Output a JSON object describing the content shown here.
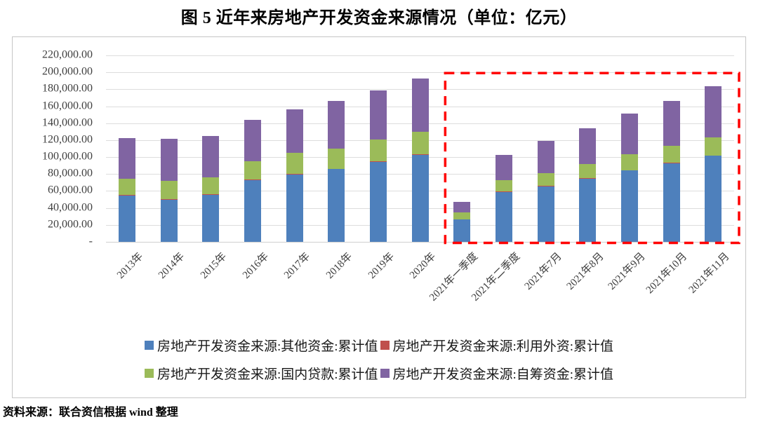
{
  "title": "图 5  近年来房地产开发资金来源情况（单位：亿元）",
  "source": "资料来源：联合资信根据 wind 整理",
  "chart_data": {
    "type": "bar",
    "stacked": true,
    "unit": "亿元",
    "grid": true,
    "legend_position": "bottom",
    "ylim": [
      0,
      220000
    ],
    "ytick_step": 20000,
    "ytick_labels": [
      "-",
      "20,000.00",
      "40,000.00",
      "60,000.00",
      "80,000.00",
      "100,000.00",
      "120,000.00",
      "140,000.00",
      "160,000.00",
      "180,000.00",
      "200,000.00",
      "220,000.00"
    ],
    "categories": [
      "2013年",
      "2014年",
      "2015年",
      "2016年",
      "2017年",
      "2018年",
      "2019年",
      "2020年",
      "2021年一季度",
      "2021年二季度",
      "2021年7月",
      "2021年8月",
      "2021年9月",
      "2021年10月",
      "2021年11月"
    ],
    "stack_order_bottom_to_top": [
      "其他资金",
      "利用外资",
      "国内贷款",
      "自筹资金"
    ],
    "series": [
      {
        "name": "房地产开发资金来源:其他资金:累计值",
        "color": "#4E80BC",
        "values": [
          54491,
          49689,
          55655,
          73429,
          79771,
          86019,
          95046,
          102870,
          26709,
          59227,
          65965,
          74800,
          84500,
          93200,
          101750
        ]
      },
      {
        "name": "房地产开发资金来源:利用外资:累计值",
        "color": "#C0504D",
        "values": [
          534,
          639,
          297,
          140,
          168,
          108,
          176,
          192,
          22,
          53,
          54,
          60,
          70,
          80,
          90
        ]
      },
      {
        "name": "房地产开发资金来源:国内贷款:累计值",
        "color": "#9BBB59",
        "values": [
          19673,
          21243,
          20214,
          21512,
          25242,
          24005,
          25229,
          26676,
          8404,
          13465,
          15217,
          17100,
          19000,
          20400,
          21200
        ]
      },
      {
        "name": "房地产开发资金来源:自筹资金:累计值",
        "color": "#8064A2",
        "values": [
          47425,
          50420,
          49038,
          49133,
          50872,
          55831,
          58158,
          63377,
          12330,
          30153,
          37734,
          42400,
          47900,
          52900,
          60300
        ]
      }
    ],
    "annotations": [
      {
        "type": "highlight-box",
        "shape": "dashed-rectangle",
        "color": "#FF0000",
        "from_category": "2021年一季度",
        "to_category": "2021年11月"
      }
    ]
  }
}
